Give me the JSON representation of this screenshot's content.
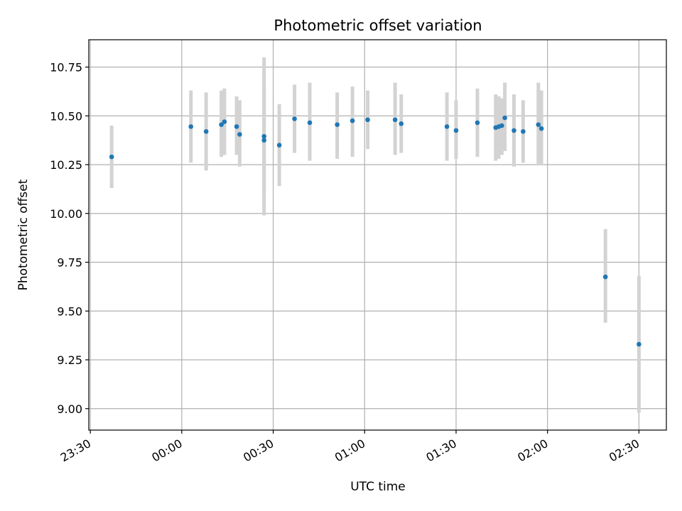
{
  "chart_data": {
    "type": "scatter",
    "title": "Photometric offset variation",
    "xlabel": "UTC time",
    "ylabel": "Photometric offset",
    "grid": true,
    "xlim_minutes": [
      -30.5,
      159
    ],
    "ylim": [
      8.89,
      10.89
    ],
    "x_ticks": [
      {
        "minutes": -30,
        "label": "23:30"
      },
      {
        "minutes": 0,
        "label": "00:00"
      },
      {
        "minutes": 30,
        "label": "00:30"
      },
      {
        "minutes": 60,
        "label": "01:00"
      },
      {
        "minutes": 90,
        "label": "01:30"
      },
      {
        "minutes": 120,
        "label": "02:00"
      },
      {
        "minutes": 150,
        "label": "02:30"
      }
    ],
    "y_ticks": [
      {
        "value": 9.0,
        "label": "9.00"
      },
      {
        "value": 9.25,
        "label": "9.25"
      },
      {
        "value": 9.5,
        "label": "9.50"
      },
      {
        "value": 9.75,
        "label": "9.75"
      },
      {
        "value": 10.0,
        "label": "10.00"
      },
      {
        "value": 10.25,
        "label": "10.25"
      },
      {
        "value": 10.5,
        "label": "10.50"
      },
      {
        "value": 10.75,
        "label": "10.75"
      }
    ],
    "colors": {
      "marker": "#1f77b4",
      "errorbar": "#d3d3d3",
      "grid": "#b0b0b0"
    },
    "points": [
      {
        "x": "23:37",
        "y": 10.29,
        "ylo": 10.13,
        "yhi": 10.45
      },
      {
        "x": "00:03",
        "y": 10.445,
        "ylo": 10.26,
        "yhi": 10.63
      },
      {
        "x": "00:08",
        "y": 10.42,
        "ylo": 10.22,
        "yhi": 10.62
      },
      {
        "x": "00:13",
        "y": 10.455,
        "ylo": 10.29,
        "yhi": 10.63
      },
      {
        "x": "00:14",
        "y": 10.47,
        "ylo": 10.3,
        "yhi": 10.64
      },
      {
        "x": "00:18",
        "y": 10.445,
        "ylo": 10.3,
        "yhi": 10.6
      },
      {
        "x": "00:19",
        "y": 10.405,
        "ylo": 10.24,
        "yhi": 10.58
      },
      {
        "x": "00:27",
        "y": 10.395,
        "ylo": 9.99,
        "yhi": 10.8
      },
      {
        "x": "00:27",
        "y": 10.375,
        "ylo": 10.12,
        "yhi": 10.63
      },
      {
        "x": "00:32",
        "y": 10.35,
        "ylo": 10.14,
        "yhi": 10.56
      },
      {
        "x": "00:37",
        "y": 10.485,
        "ylo": 10.31,
        "yhi": 10.66
      },
      {
        "x": "00:42",
        "y": 10.465,
        "ylo": 10.27,
        "yhi": 10.67
      },
      {
        "x": "00:51",
        "y": 10.455,
        "ylo": 10.28,
        "yhi": 10.62
      },
      {
        "x": "00:56",
        "y": 10.475,
        "ylo": 10.29,
        "yhi": 10.65
      },
      {
        "x": "01:01",
        "y": 10.48,
        "ylo": 10.33,
        "yhi": 10.63
      },
      {
        "x": "01:10",
        "y": 10.48,
        "ylo": 10.3,
        "yhi": 10.67
      },
      {
        "x": "01:12",
        "y": 10.46,
        "ylo": 10.31,
        "yhi": 10.61
      },
      {
        "x": "01:27",
        "y": 10.445,
        "ylo": 10.27,
        "yhi": 10.62
      },
      {
        "x": "01:30",
        "y": 10.425,
        "ylo": 10.28,
        "yhi": 10.58
      },
      {
        "x": "01:37",
        "y": 10.465,
        "ylo": 10.29,
        "yhi": 10.64
      },
      {
        "x": "01:43",
        "y": 10.44,
        "ylo": 10.27,
        "yhi": 10.61
      },
      {
        "x": "01:44",
        "y": 10.445,
        "ylo": 10.28,
        "yhi": 10.6
      },
      {
        "x": "01:45",
        "y": 10.45,
        "ylo": 10.3,
        "yhi": 10.59
      },
      {
        "x": "01:46",
        "y": 10.49,
        "ylo": 10.32,
        "yhi": 10.67
      },
      {
        "x": "01:49",
        "y": 10.425,
        "ylo": 10.24,
        "yhi": 10.61
      },
      {
        "x": "01:52",
        "y": 10.42,
        "ylo": 10.26,
        "yhi": 10.58
      },
      {
        "x": "01:57",
        "y": 10.455,
        "ylo": 10.25,
        "yhi": 10.67
      },
      {
        "x": "01:58",
        "y": 10.435,
        "ylo": 10.25,
        "yhi": 10.63
      },
      {
        "x": "02:19",
        "y": 9.675,
        "ylo": 9.44,
        "yhi": 9.92
      },
      {
        "x": "02:30",
        "y": 9.33,
        "ylo": 8.98,
        "yhi": 9.68
      }
    ]
  }
}
